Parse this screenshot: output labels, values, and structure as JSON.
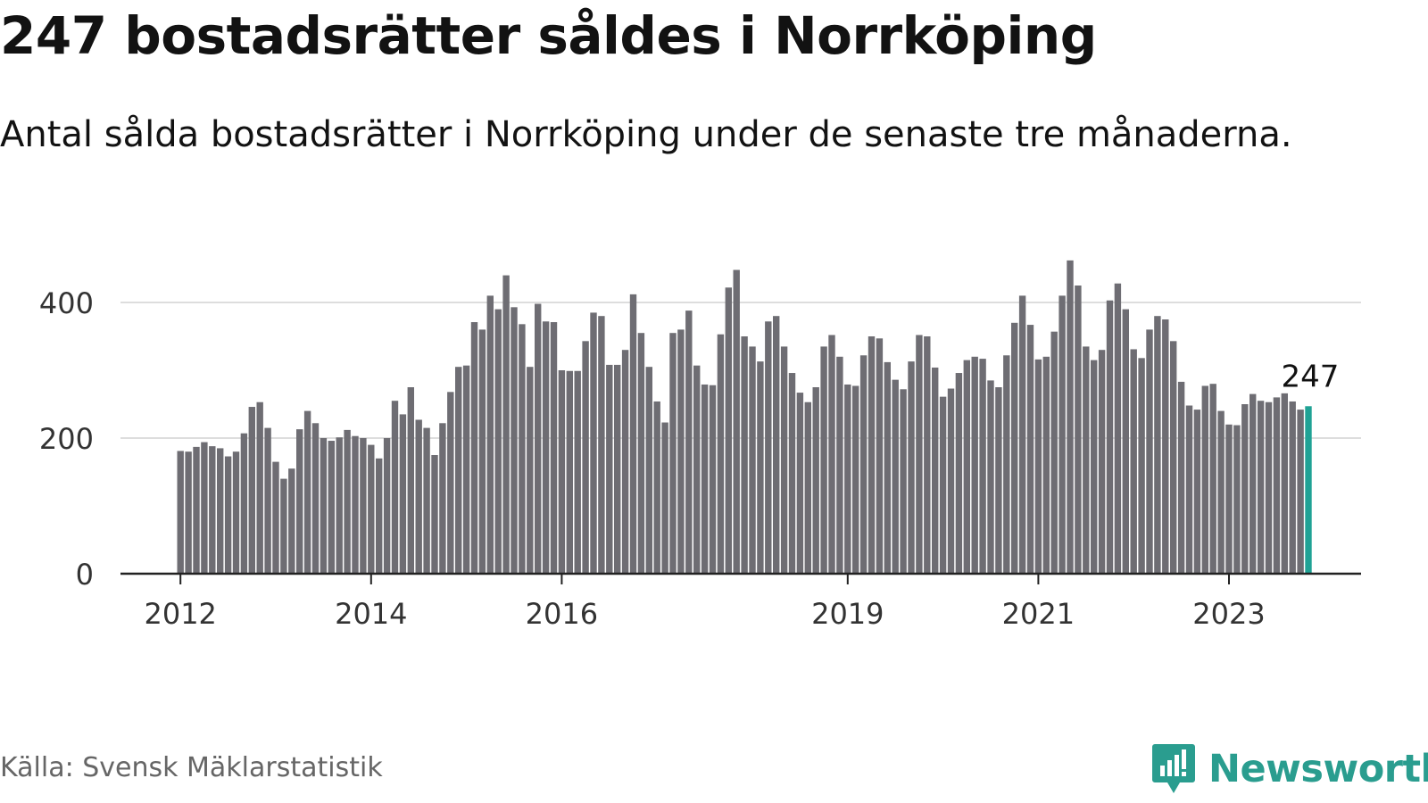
{
  "header": {
    "title": "247 bostadsrätter såldes i Norrköping",
    "subtitle": "Antal sålda bostadsrätter i Norrköping under de senaste tre månaderna."
  },
  "footer": {
    "source": "Källa: Svensk Mäklarstatistik",
    "brand": "Newsworthy"
  },
  "colors": {
    "bar": "#6e6d73",
    "highlight": "#1fa295",
    "gridline": "#dddddd",
    "axis": "#222222",
    "brand": "#2a9d8f"
  },
  "chart_data": {
    "type": "bar",
    "title": "247 bostadsrätter såldes i Norrköping",
    "subtitle": "Antal sålda bostadsrätter i Norrköping under de senaste tre månaderna.",
    "xlabel": "",
    "ylabel": "",
    "ylim": [
      0,
      460
    ],
    "y_ticks": [
      0,
      200,
      400
    ],
    "grid": "horizontal",
    "start": "2012-01",
    "x_ticks": [
      {
        "label": "2012",
        "index": 0
      },
      {
        "label": "2014",
        "index": 24
      },
      {
        "label": "2016",
        "index": 48
      },
      {
        "label": "2019",
        "index": 84
      },
      {
        "label": "2021",
        "index": 108
      },
      {
        "label": "2023",
        "index": 132
      }
    ],
    "highlight_index": 142,
    "highlight_label": "247",
    "values": [
      181,
      180,
      187,
      194,
      188,
      185,
      173,
      180,
      207,
      246,
      253,
      215,
      165,
      140,
      155,
      213,
      240,
      222,
      200,
      196,
      201,
      212,
      203,
      200,
      190,
      170,
      200,
      255,
      235,
      275,
      227,
      215,
      175,
      222,
      268,
      305,
      307,
      371,
      360,
      410,
      390,
      440,
      393,
      368,
      305,
      398,
      372,
      371,
      300,
      299,
      299,
      343,
      385,
      380,
      308,
      308,
      330,
      412,
      355,
      305,
      254,
      223,
      355,
      360,
      388,
      307,
      279,
      278,
      353,
      422,
      448,
      350,
      335,
      313,
      372,
      380,
      335,
      296,
      267,
      253,
      275,
      335,
      352,
      320,
      279,
      277,
      322,
      350,
      347,
      312,
      286,
      272,
      313,
      352,
      350,
      304,
      261,
      273,
      296,
      315,
      320,
      317,
      285,
      275,
      322,
      370,
      410,
      367,
      316,
      320,
      357,
      410,
      462,
      425,
      335,
      315,
      330,
      403,
      428,
      390,
      331,
      318,
      360,
      380,
      375,
      343,
      283,
      248,
      242,
      277,
      280,
      240,
      220,
      219,
      250,
      265,
      255,
      253,
      260,
      266,
      254,
      242,
      247
    ]
  }
}
